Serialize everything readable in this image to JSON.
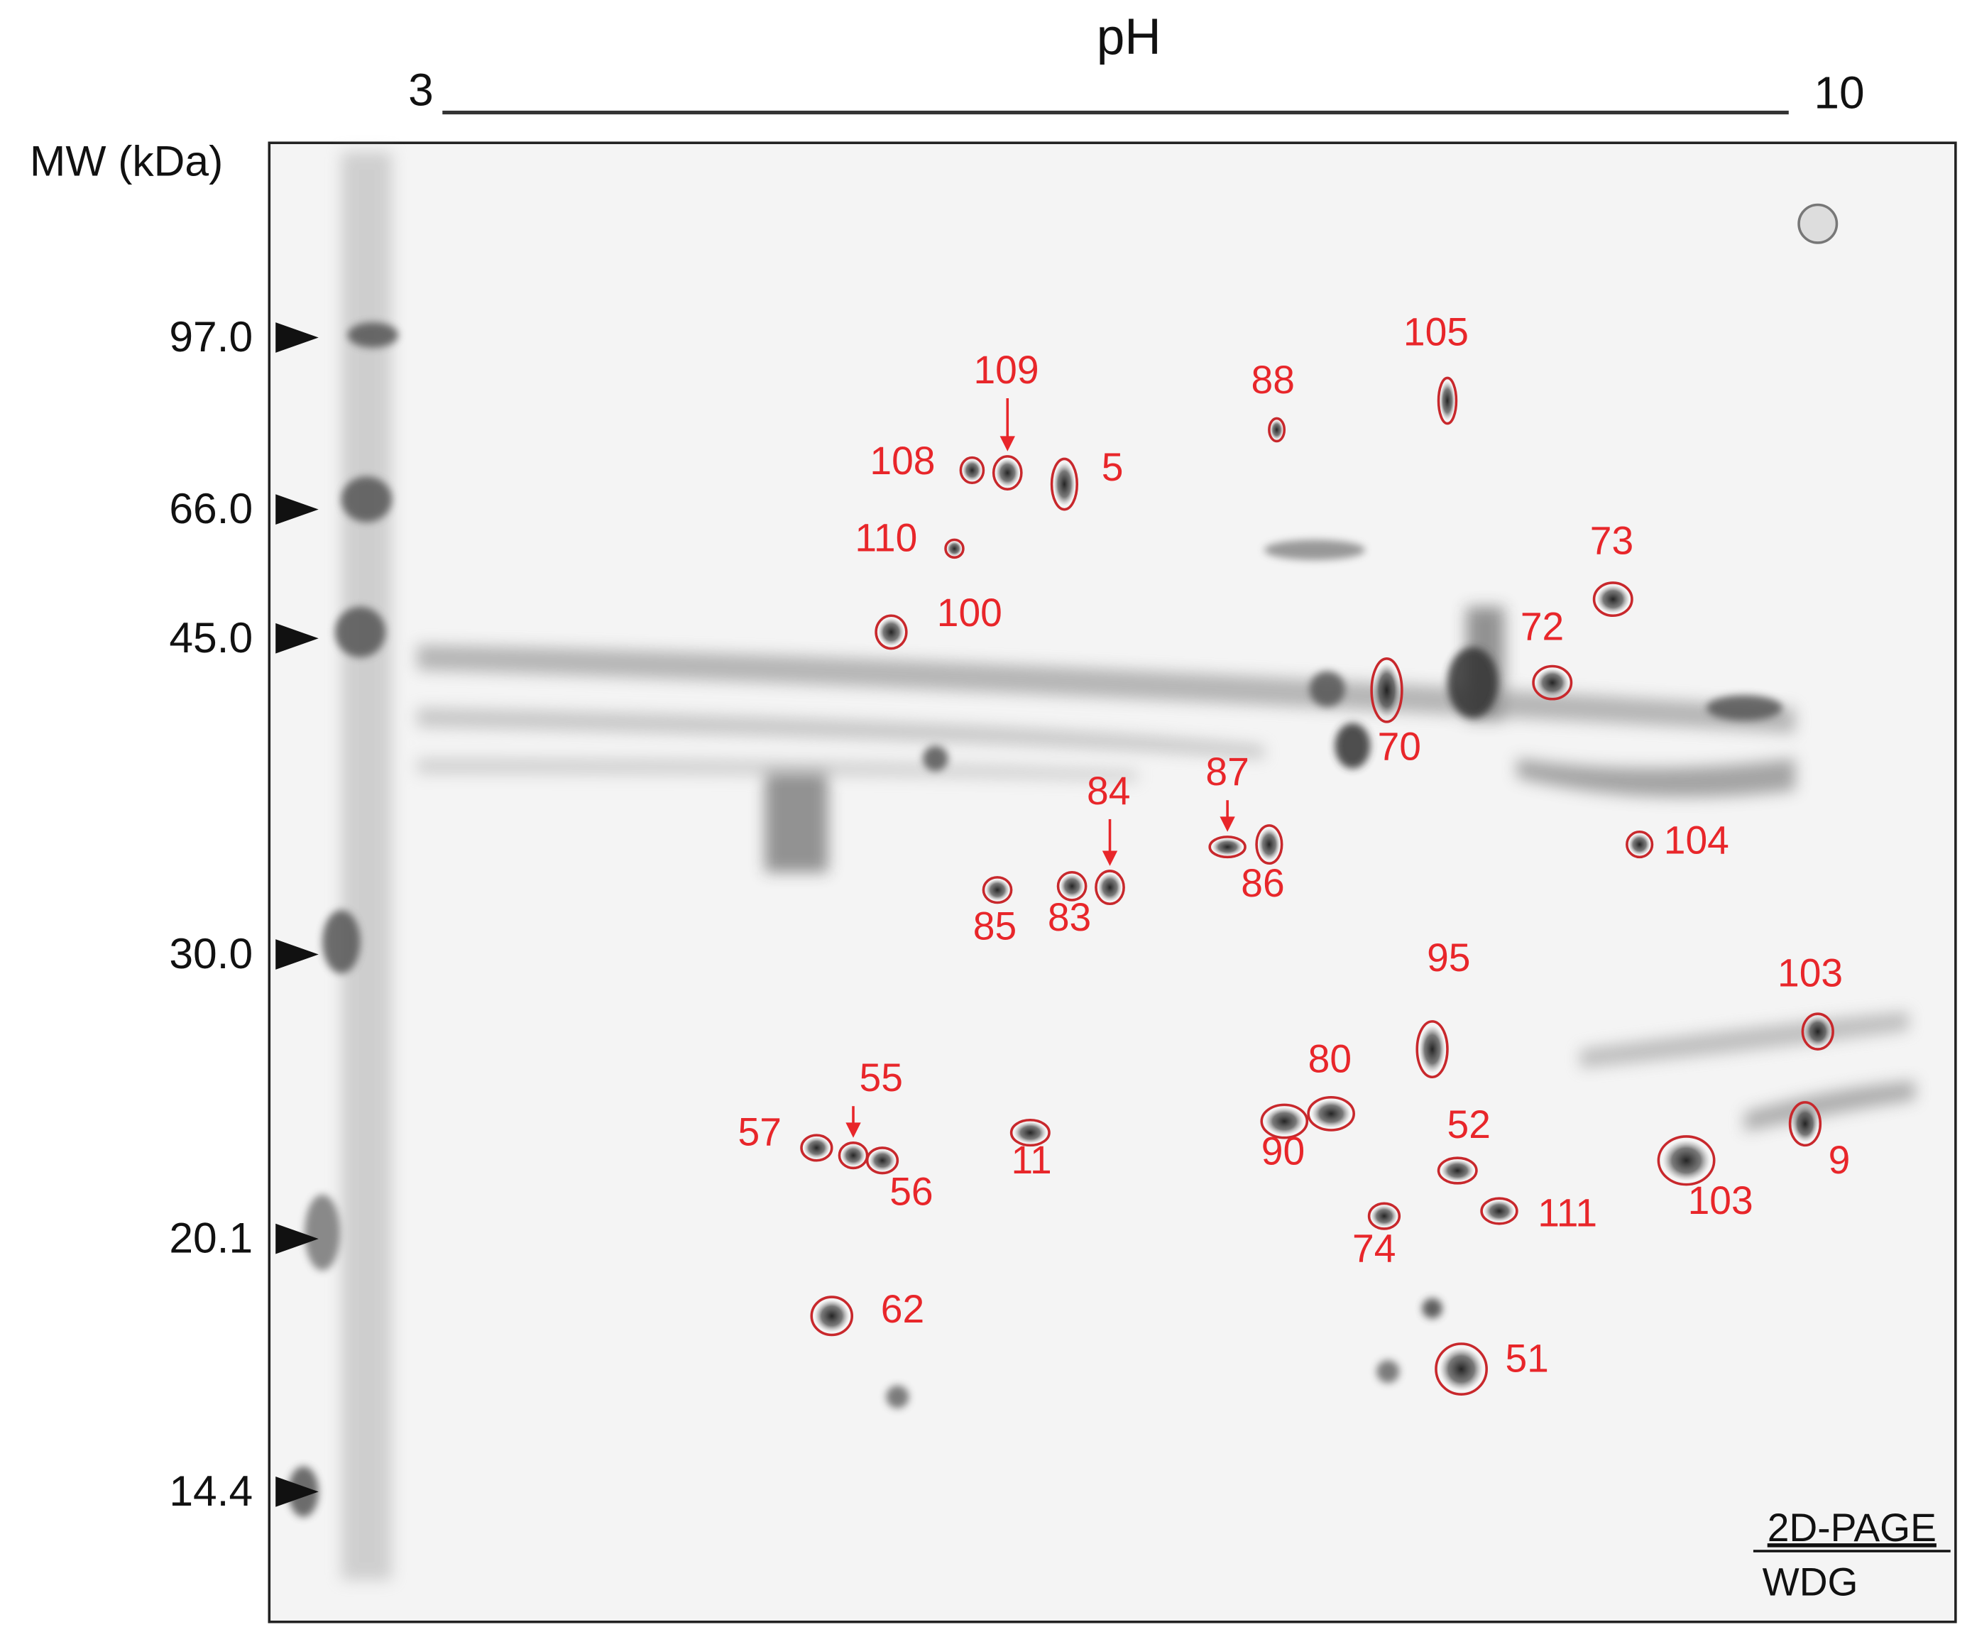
{
  "header": {
    "title": "pH",
    "ph_start": "3",
    "ph_end": "10"
  },
  "mw_axis": {
    "title": "MW (kDa)",
    "markers": [
      "97.0",
      "66.0",
      "45.0",
      "30.0",
      "20.1",
      "14.4"
    ]
  },
  "spots": [
    "109",
    "108",
    "5",
    "110",
    "100",
    "88",
    "105",
    "73",
    "72",
    "70",
    "84",
    "87",
    "86",
    "85",
    "83",
    "104",
    "95",
    "103",
    "80",
    "90",
    "52",
    "103",
    "9",
    "55",
    "57",
    "56",
    "11",
    "74",
    "111",
    "62",
    "51"
  ],
  "footer": {
    "method": "2D-PAGE",
    "source": "WDG"
  }
}
